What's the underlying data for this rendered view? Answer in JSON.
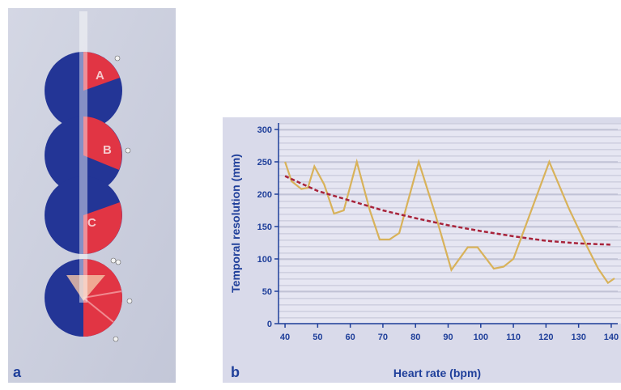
{
  "panel_a": {
    "label": "a",
    "segments": [
      "A",
      "B",
      "C"
    ]
  },
  "panel_b": {
    "label": "b"
  },
  "chart_data": {
    "type": "line",
    "y_label": "Temporal resolution (mm)",
    "x_label": "Heart rate (bpm)",
    "xlim": [
      38,
      142
    ],
    "ylim": [
      0,
      310
    ],
    "xticks": [
      40,
      50,
      60,
      70,
      80,
      90,
      100,
      110,
      120,
      130,
      140
    ],
    "yticks": [
      0,
      50,
      100,
      150,
      200,
      250,
      300
    ],
    "grid": true,
    "series": [
      {
        "color": "#d8b25a",
        "dashed": false,
        "x": [
          40,
          42,
          45,
          47,
          49,
          52,
          55,
          58,
          62,
          66,
          69,
          72,
          75,
          81,
          86,
          91,
          96,
          99,
          104,
          107,
          110,
          121,
          127,
          132,
          136,
          139,
          141
        ],
        "values": [
          250,
          220,
          208,
          210,
          243,
          215,
          170,
          175,
          250,
          175,
          130,
          130,
          140,
          250,
          170,
          83,
          118,
          118,
          85,
          88,
          100,
          250,
          178,
          125,
          85,
          63,
          70
        ]
      },
      {
        "color": "#a8233a",
        "dashed": true,
        "x": [
          40,
          50,
          60,
          70,
          80,
          90,
          100,
          110,
          120,
          130,
          140
        ],
        "values": [
          228,
          205,
          190,
          175,
          163,
          152,
          143,
          135,
          128,
          124,
          122
        ]
      }
    ]
  }
}
